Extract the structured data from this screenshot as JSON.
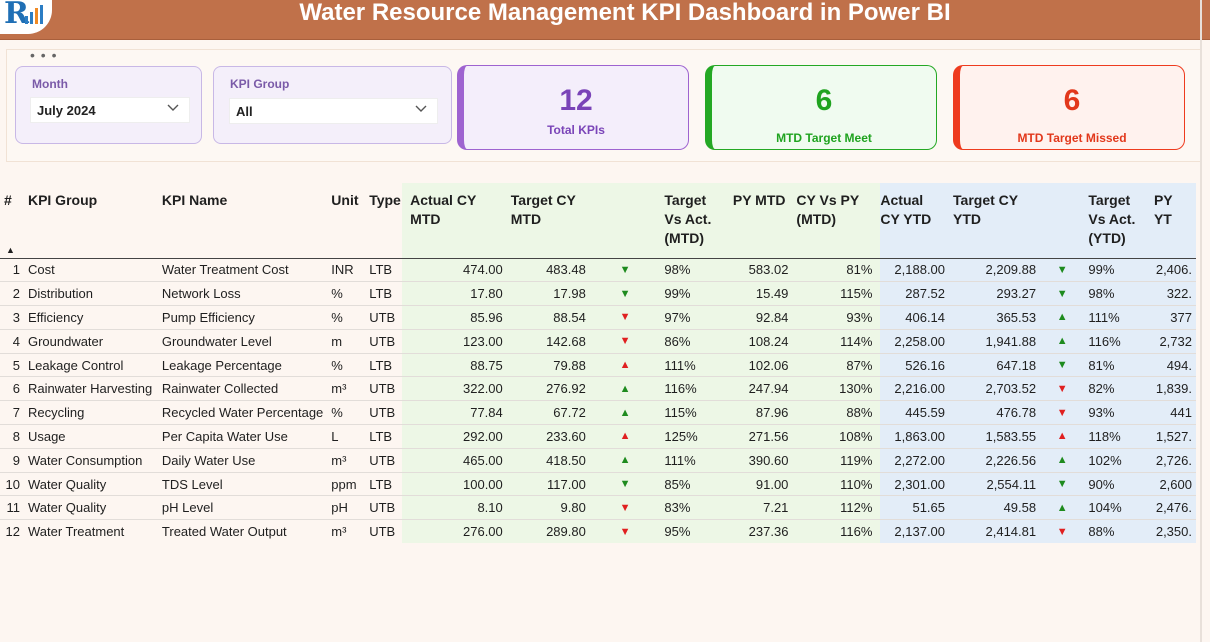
{
  "header": {
    "title": "Water Resource Management KPI Dashboard in Power BI",
    "logo_letter": "R"
  },
  "slicers": [
    {
      "label": "Month",
      "value": "July 2024"
    },
    {
      "label": "KPI Group",
      "value": "All"
    }
  ],
  "cards": [
    {
      "value": "12",
      "label": "Total KPIs",
      "color": "#7a44b8",
      "border": "#9e63d0",
      "bg": "#f4eefb"
    },
    {
      "value": "6",
      "label": "MTD Target Meet",
      "color": "#1fa31f",
      "border": "#24a824",
      "bg": "#f0fbf0"
    },
    {
      "value": "6",
      "label": "MTD Target Missed",
      "color": "#e2381b",
      "border": "#ee3b1e",
      "bg": "#fff2ee"
    }
  ],
  "table": {
    "columns": [
      "#",
      "KPI Group",
      "KPI Name",
      "Unit",
      "Type",
      "Actual CY MTD",
      "Target CY MTD",
      "",
      "Target Vs Act. (MTD)",
      "PY MTD",
      "CY Vs PY (MTD)",
      "Actual CY YTD",
      "Target CY YTD",
      "",
      "Target Vs Act. (YTD)",
      "PY YT"
    ],
    "sort_indicator": "▲",
    "rows": [
      {
        "n": "1",
        "group": "Cost",
        "name": "Water Treatment Cost",
        "unit": "INR",
        "type": "LTB",
        "act_mtd": "474.00",
        "tgt_mtd": "483.48",
        "arr_mtd": "▼",
        "col_mtd": "green",
        "tva_mtd": "98%",
        "py_mtd": "583.02",
        "cvp": "81%",
        "act_ytd": "2,188.00",
        "tgt_ytd": "2,209.88",
        "arr_ytd": "▼",
        "col_ytd": "green",
        "tva_ytd": "99%",
        "py_ytd": "2,406."
      },
      {
        "n": "2",
        "group": "Distribution",
        "name": "Network Loss",
        "unit": "%",
        "type": "LTB",
        "act_mtd": "17.80",
        "tgt_mtd": "17.98",
        "arr_mtd": "▼",
        "col_mtd": "green",
        "tva_mtd": "99%",
        "py_mtd": "15.49",
        "cvp": "115%",
        "act_ytd": "287.52",
        "tgt_ytd": "293.27",
        "arr_ytd": "▼",
        "col_ytd": "green",
        "tva_ytd": "98%",
        "py_ytd": "322."
      },
      {
        "n": "3",
        "group": "Efficiency",
        "name": "Pump Efficiency",
        "unit": "%",
        "type": "UTB",
        "act_mtd": "85.96",
        "tgt_mtd": "88.54",
        "arr_mtd": "▼",
        "col_mtd": "red",
        "tva_mtd": "97%",
        "py_mtd": "92.84",
        "cvp": "93%",
        "act_ytd": "406.14",
        "tgt_ytd": "365.53",
        "arr_ytd": "▲",
        "col_ytd": "green",
        "tva_ytd": "111%",
        "py_ytd": "377"
      },
      {
        "n": "4",
        "group": "Groundwater",
        "name": "Groundwater Level",
        "unit": "m",
        "type": "UTB",
        "act_mtd": "123.00",
        "tgt_mtd": "142.68",
        "arr_mtd": "▼",
        "col_mtd": "red",
        "tva_mtd": "86%",
        "py_mtd": "108.24",
        "cvp": "114%",
        "act_ytd": "2,258.00",
        "tgt_ytd": "1,941.88",
        "arr_ytd": "▲",
        "col_ytd": "green",
        "tva_ytd": "116%",
        "py_ytd": "2,732"
      },
      {
        "n": "5",
        "group": "Leakage Control",
        "name": "Leakage Percentage",
        "unit": "%",
        "type": "LTB",
        "act_mtd": "88.75",
        "tgt_mtd": "79.88",
        "arr_mtd": "▲",
        "col_mtd": "red",
        "tva_mtd": "111%",
        "py_mtd": "102.06",
        "cvp": "87%",
        "act_ytd": "526.16",
        "tgt_ytd": "647.18",
        "arr_ytd": "▼",
        "col_ytd": "green",
        "tva_ytd": "81%",
        "py_ytd": "494."
      },
      {
        "n": "6",
        "group": "Rainwater Harvesting",
        "name": "Rainwater Collected",
        "unit": "m³",
        "type": "UTB",
        "act_mtd": "322.00",
        "tgt_mtd": "276.92",
        "arr_mtd": "▲",
        "col_mtd": "green",
        "tva_mtd": "116%",
        "py_mtd": "247.94",
        "cvp": "130%",
        "act_ytd": "2,216.00",
        "tgt_ytd": "2,703.52",
        "arr_ytd": "▼",
        "col_ytd": "red",
        "tva_ytd": "82%",
        "py_ytd": "1,839."
      },
      {
        "n": "7",
        "group": "Recycling",
        "name": "Recycled Water Percentage",
        "unit": "%",
        "type": "UTB",
        "act_mtd": "77.84",
        "tgt_mtd": "67.72",
        "arr_mtd": "▲",
        "col_mtd": "green",
        "tva_mtd": "115%",
        "py_mtd": "87.96",
        "cvp": "88%",
        "act_ytd": "445.59",
        "tgt_ytd": "476.78",
        "arr_ytd": "▼",
        "col_ytd": "red",
        "tva_ytd": "93%",
        "py_ytd": "441"
      },
      {
        "n": "8",
        "group": "Usage",
        "name": "Per Capita Water Use",
        "unit": "L",
        "type": "LTB",
        "act_mtd": "292.00",
        "tgt_mtd": "233.60",
        "arr_mtd": "▲",
        "col_mtd": "red",
        "tva_mtd": "125%",
        "py_mtd": "271.56",
        "cvp": "108%",
        "act_ytd": "1,863.00",
        "tgt_ytd": "1,583.55",
        "arr_ytd": "▲",
        "col_ytd": "red",
        "tva_ytd": "118%",
        "py_ytd": "1,527."
      },
      {
        "n": "9",
        "group": "Water Consumption",
        "name": "Daily Water Use",
        "unit": "m³",
        "type": "UTB",
        "act_mtd": "465.00",
        "tgt_mtd": "418.50",
        "arr_mtd": "▲",
        "col_mtd": "green",
        "tva_mtd": "111%",
        "py_mtd": "390.60",
        "cvp": "119%",
        "act_ytd": "2,272.00",
        "tgt_ytd": "2,226.56",
        "arr_ytd": "▲",
        "col_ytd": "green",
        "tva_ytd": "102%",
        "py_ytd": "2,726."
      },
      {
        "n": "10",
        "group": "Water Quality",
        "name": "TDS Level",
        "unit": "ppm",
        "type": "LTB",
        "act_mtd": "100.00",
        "tgt_mtd": "117.00",
        "arr_mtd": "▼",
        "col_mtd": "green",
        "tva_mtd": "85%",
        "py_mtd": "91.00",
        "cvp": "110%",
        "act_ytd": "2,301.00",
        "tgt_ytd": "2,554.11",
        "arr_ytd": "▼",
        "col_ytd": "green",
        "tva_ytd": "90%",
        "py_ytd": "2,600"
      },
      {
        "n": "11",
        "group": "Water Quality",
        "name": "pH Level",
        "unit": "pH",
        "type": "UTB",
        "act_mtd": "8.10",
        "tgt_mtd": "9.80",
        "arr_mtd": "▼",
        "col_mtd": "red",
        "tva_mtd": "83%",
        "py_mtd": "7.21",
        "cvp": "112%",
        "act_ytd": "51.65",
        "tgt_ytd": "49.58",
        "arr_ytd": "▲",
        "col_ytd": "green",
        "tva_ytd": "104%",
        "py_ytd": "2,476."
      },
      {
        "n": "12",
        "group": "Water Treatment",
        "name": "Treated Water Output",
        "unit": "m³",
        "type": "UTB",
        "act_mtd": "276.00",
        "tgt_mtd": "289.80",
        "arr_mtd": "▼",
        "col_mtd": "red",
        "tva_mtd": "95%",
        "py_mtd": "237.36",
        "cvp": "116%",
        "act_ytd": "2,137.00",
        "tgt_ytd": "2,414.81",
        "arr_ytd": "▼",
        "col_ytd": "red",
        "tva_ytd": "88%",
        "py_ytd": "2,350."
      }
    ]
  }
}
